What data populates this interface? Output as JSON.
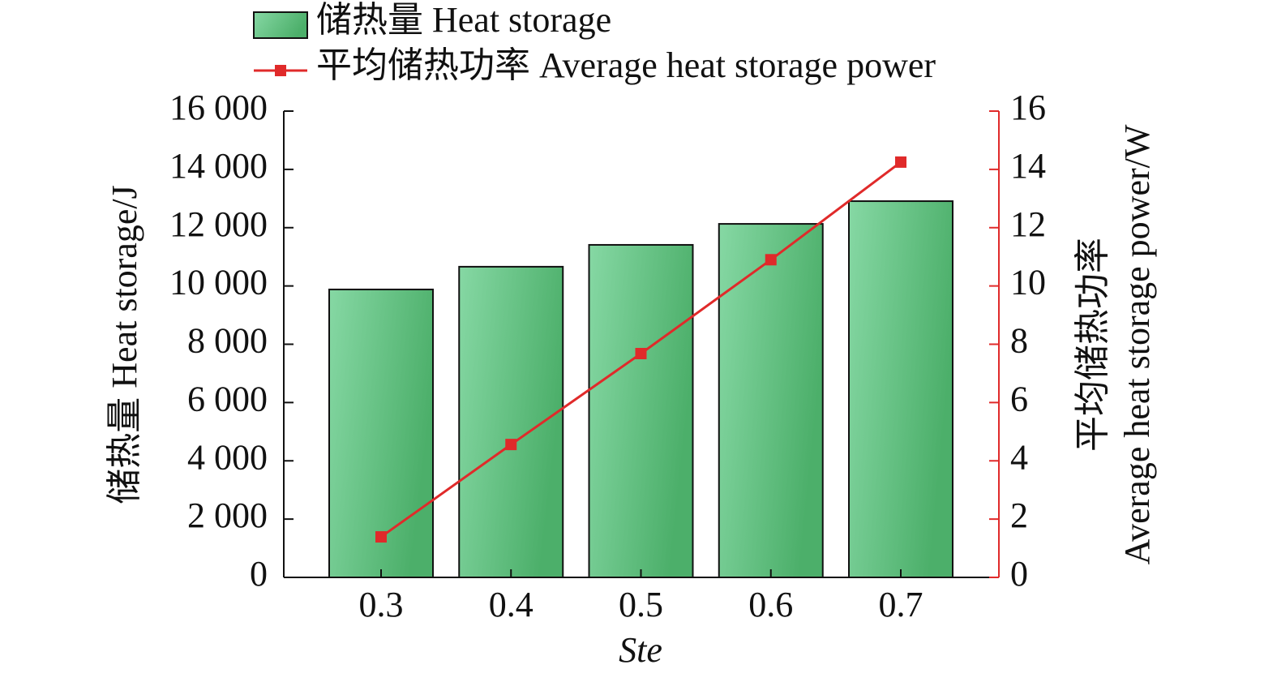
{
  "chart_data": {
    "type": "bar_line",
    "categories": [
      "0.3",
      "0.4",
      "0.5",
      "0.6",
      "0.7"
    ],
    "series": [
      {
        "name": "储热量 Heat storage",
        "type": "bar",
        "color": "#4caf6a",
        "values": [
          9880,
          10660,
          11410,
          12130,
          12910
        ]
      },
      {
        "name": "平均储热功率 Average heat storage power",
        "type": "line",
        "axis": "y2",
        "color": "#e02a2a",
        "values": [
          1.39,
          4.56,
          7.68,
          10.9,
          14.25
        ]
      }
    ],
    "xlabel": "Ste",
    "ylabel": "储热量 Heat storage/J",
    "y2label": [
      "平均储热功率",
      "Average heat storage power/W"
    ],
    "ylim": [
      0,
      16000
    ],
    "yticks": [
      0,
      {
        "value": 2000,
        "label": "2 000"
      },
      {
        "value": 4000,
        "label": "4 000"
      },
      {
        "value": 6000,
        "label": "6 000"
      },
      {
        "value": 8000,
        "label": "8 000"
      },
      {
        "value": 10000,
        "label": "10 000"
      },
      {
        "value": 12000,
        "label": "12 000"
      },
      {
        "value": 14000,
        "label": "14 000"
      },
      {
        "value": 16000,
        "label": "16 000"
      }
    ],
    "y2lim": [
      0,
      16
    ],
    "y2ticks": [
      0,
      2,
      4,
      6,
      8,
      10,
      12,
      14,
      16
    ]
  }
}
